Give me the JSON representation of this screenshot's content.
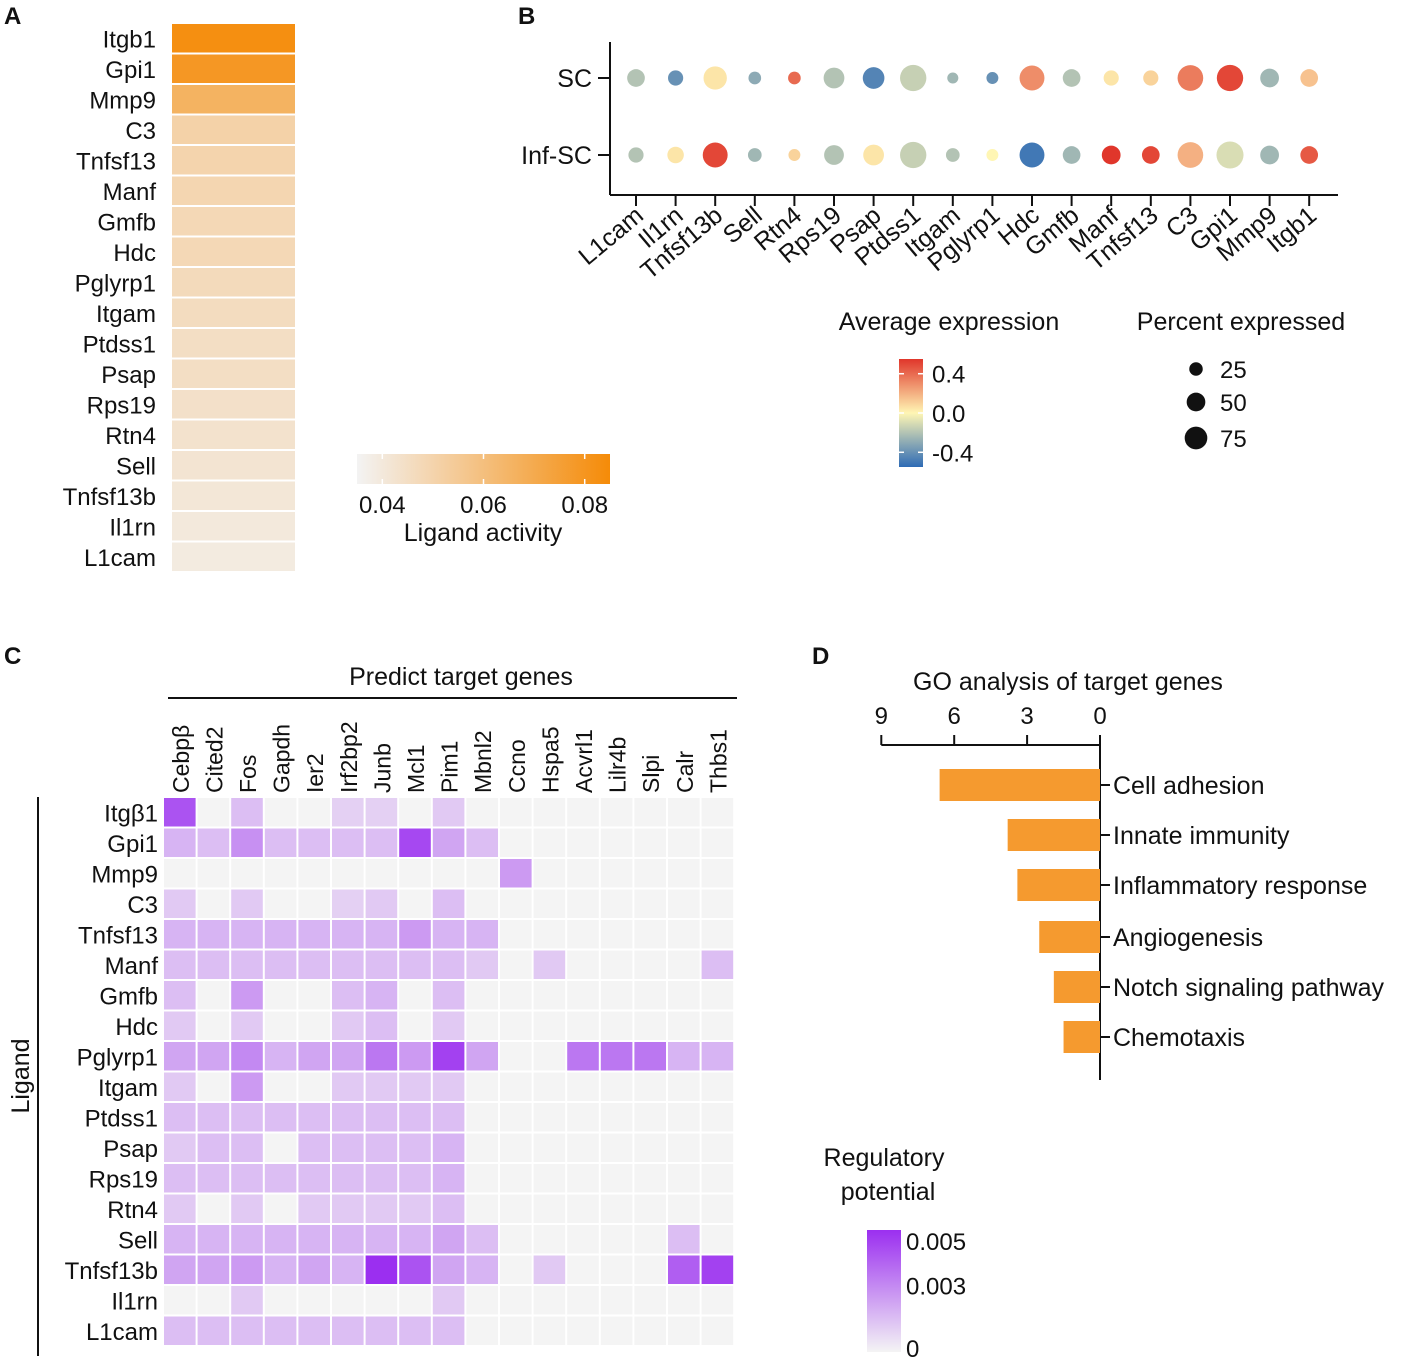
{
  "panel_labels": {
    "a": "A",
    "b": "B",
    "c": "C",
    "d": "D"
  },
  "colors": {
    "ligand_low": "#f3f3f3",
    "ligand_high": "#f58b08",
    "expr_low": "#2e6bb5",
    "expr_mid": "#fff6b4",
    "expr_high": "#e0362b",
    "reg_low": "#f4f4f4",
    "reg_high": "#9b2ff0",
    "bar": "#f59a2f",
    "axis": "#111111"
  },
  "chart_data": [
    {
      "panel": "A",
      "type": "heatmap",
      "title": "",
      "rows": [
        "Itgb1",
        "Gpi1",
        "Mmp9",
        "C3",
        "Tnfsf13",
        "Manf",
        "Gmfb",
        "Hdc",
        "Pglyrp1",
        "Itgam",
        "Ptdss1",
        "Psap",
        "Rps19",
        "Rtn4",
        "Sell",
        "Tnfsf13b",
        "Il1rn",
        "L1cam"
      ],
      "values": [
        0.083,
        0.079,
        0.066,
        0.051,
        0.05,
        0.049,
        0.048,
        0.048,
        0.047,
        0.046,
        0.045,
        0.045,
        0.044,
        0.043,
        0.042,
        0.041,
        0.04,
        0.039
      ],
      "colorbar": {
        "label": "Ligand activity",
        "range": [
          0.035,
          0.085
        ],
        "ticks": [
          0.04,
          0.06,
          0.08
        ],
        "tick_labels": [
          "0.04",
          "0.06",
          "0.08"
        ]
      }
    },
    {
      "panel": "B",
      "type": "scatter",
      "subtype": "dotplot",
      "groups": [
        "SC",
        "Inf-SC"
      ],
      "genes": [
        "L1cam",
        "Il1rn",
        "Tnfsf13b",
        "Sell",
        "Rtn4",
        "Rps19",
        "Psap",
        "Ptdss1",
        "Itgam",
        "Pglyrp1",
        "Hdc",
        "Gmfb",
        "Manf",
        "Tnfsf13",
        "C3",
        "Gpi1",
        "Mmp9",
        "Itgb1"
      ],
      "series": [
        {
          "name": "SC",
          "avg_expression": [
            -0.2,
            -0.4,
            0.05,
            -0.3,
            0.4,
            -0.2,
            -0.45,
            -0.15,
            -0.25,
            -0.4,
            0.3,
            -0.2,
            0.05,
            0.1,
            0.35,
            0.5,
            -0.25,
            0.15
          ],
          "pct_expressed": [
            30,
            20,
            60,
            12,
            12,
            45,
            50,
            80,
            8,
            10,
            70,
            30,
            20,
            20,
            75,
            80,
            35,
            30
          ]
        },
        {
          "name": "Inf-SC",
          "avg_expression": [
            -0.2,
            0.05,
            0.5,
            -0.25,
            0.1,
            -0.2,
            0.05,
            -0.15,
            -0.2,
            0.0,
            -0.5,
            -0.25,
            0.55,
            0.5,
            0.2,
            -0.1,
            -0.25,
            0.45
          ],
          "pct_expressed": [
            20,
            25,
            70,
            15,
            10,
            40,
            45,
            80,
            15,
            10,
            70,
            30,
            35,
            30,
            75,
            85,
            35,
            30
          ]
        }
      ],
      "color_legend": {
        "title": "Average expression",
        "range": [
          -0.55,
          0.55
        ],
        "ticks": [
          0.4,
          0.0,
          -0.4
        ],
        "tick_labels": [
          "0.4",
          "0.0",
          "-0.4"
        ]
      },
      "size_legend": {
        "title": "Percent expressed",
        "values": [
          25,
          50,
          75
        ],
        "labels": [
          "25",
          "50",
          "75"
        ]
      }
    },
    {
      "panel": "C",
      "type": "heatmap",
      "title": "Predict target genes",
      "ylabel": "Ligand",
      "columns": [
        "Cebpβ",
        "Cited2",
        "Fos",
        "Gapdh",
        "Ier2",
        "Irf2bp2",
        "Junb",
        "Mcl1",
        "Pim1",
        "Mbnl2",
        "Ccno",
        "Hspa5",
        "Acvrl1",
        "Lilr4b",
        "Slpi",
        "Calr",
        "Thbs1"
      ],
      "rows": [
        "Itgβ1",
        "Gpi1",
        "Mmp9",
        "C3",
        "Tnfsf13",
        "Manf",
        "Gmfb",
        "Hdc",
        "Pglyrp1",
        "Itgam",
        "Ptdss1",
        "Psap",
        "Rps19",
        "Rtn4",
        "Sell",
        "Tnfsf13b",
        "Il1rn",
        "L1cam"
      ],
      "values": [
        [
          0.0045,
          0,
          0.0015,
          0,
          0,
          0.001,
          0.001,
          0,
          0.0012,
          0,
          0,
          0,
          0,
          0,
          0,
          0,
          0
        ],
        [
          0.0018,
          0.0015,
          0.0028,
          0.0015,
          0.0015,
          0.0015,
          0.0015,
          0.0048,
          0.0022,
          0.0015,
          0,
          0,
          0,
          0,
          0,
          0,
          0
        ],
        [
          0,
          0,
          0,
          0,
          0,
          0,
          0,
          0,
          0,
          0,
          0.0025,
          0,
          0,
          0,
          0,
          0,
          0
        ],
        [
          0.0012,
          0,
          0.0012,
          0,
          0,
          0.001,
          0.0012,
          0,
          0.0015,
          0,
          0,
          0,
          0,
          0,
          0,
          0,
          0
        ],
        [
          0.0018,
          0.0018,
          0.0018,
          0.0018,
          0.0018,
          0.0018,
          0.0018,
          0.0025,
          0.0018,
          0.0018,
          0,
          0,
          0,
          0,
          0,
          0,
          0
        ],
        [
          0.0015,
          0.0015,
          0.0015,
          0.0015,
          0.0015,
          0.0015,
          0.0015,
          0.0015,
          0.0015,
          0.0012,
          0,
          0.0012,
          0,
          0,
          0,
          0,
          0.0015
        ],
        [
          0.0015,
          0,
          0.0025,
          0,
          0,
          0.0015,
          0.0018,
          0,
          0.0015,
          0,
          0,
          0,
          0,
          0,
          0,
          0,
          0
        ],
        [
          0.0012,
          0,
          0.0012,
          0,
          0,
          0.0012,
          0.0015,
          0,
          0.0012,
          0,
          0,
          0,
          0,
          0,
          0,
          0,
          0
        ],
        [
          0.0022,
          0.0022,
          0.003,
          0.0018,
          0.0022,
          0.0022,
          0.0035,
          0.0025,
          0.005,
          0.0022,
          0,
          0,
          0.0035,
          0.0035,
          0.0035,
          0.0018,
          0.0018
        ],
        [
          0.0012,
          0,
          0.0025,
          0,
          0,
          0.0012,
          0.0012,
          0.0012,
          0.0012,
          0,
          0,
          0,
          0,
          0,
          0,
          0,
          0
        ],
        [
          0.0015,
          0.0015,
          0.0015,
          0.0015,
          0.0015,
          0.0015,
          0.0015,
          0.0015,
          0.0015,
          0,
          0,
          0,
          0,
          0,
          0,
          0,
          0
        ],
        [
          0.0012,
          0.0015,
          0.0015,
          0,
          0.0015,
          0.0015,
          0.0015,
          0.0015,
          0.0018,
          0,
          0,
          0,
          0,
          0,
          0,
          0,
          0
        ],
        [
          0.0015,
          0.0015,
          0.0015,
          0.0015,
          0.0015,
          0.0015,
          0.0015,
          0.0015,
          0.0018,
          0,
          0,
          0,
          0,
          0,
          0,
          0,
          0
        ],
        [
          0.0012,
          0,
          0.0012,
          0,
          0.0012,
          0.0012,
          0.0012,
          0.0012,
          0.0015,
          0,
          0,
          0,
          0,
          0,
          0,
          0,
          0
        ],
        [
          0.0018,
          0.0018,
          0.0018,
          0.0018,
          0.0018,
          0.0018,
          0.0018,
          0.0018,
          0.0022,
          0.0015,
          0,
          0,
          0,
          0,
          0,
          0.0015,
          0
        ],
        [
          0.0022,
          0.0022,
          0.0025,
          0.0018,
          0.0022,
          0.0018,
          0.0055,
          0.0045,
          0.0022,
          0.0018,
          0,
          0.0012,
          0,
          0,
          0,
          0.0042,
          0.005
        ],
        [
          0,
          0,
          0.0012,
          0,
          0,
          0,
          0,
          0,
          0.0012,
          0,
          0,
          0,
          0,
          0,
          0,
          0,
          0
        ],
        [
          0.0015,
          0.0015,
          0.0015,
          0.0015,
          0.0015,
          0.0015,
          0.0015,
          0.0015,
          0.0015,
          0,
          0,
          0,
          0,
          0,
          0,
          0,
          0
        ]
      ],
      "colorbar": {
        "label_lines": [
          "Regulatory",
          "potential"
        ],
        "range": [
          0,
          0.0055
        ],
        "ticks": [
          0.005,
          0.003,
          0
        ],
        "tick_labels": [
          "0.005",
          "0.003",
          "0"
        ]
      }
    },
    {
      "panel": "D",
      "type": "bar",
      "orientation": "horizontal",
      "title": "GO analysis of target genes",
      "categories": [
        "Cell adhesion",
        "Innate immunity",
        "Inflammatory response",
        "Angiogenesis",
        "Notch signaling pathway",
        "Chemotaxis"
      ],
      "values": [
        6.6,
        3.8,
        3.4,
        2.5,
        1.9,
        1.5
      ],
      "xlim": [
        0,
        9
      ],
      "x_reversed": true,
      "ticks": [
        9,
        6,
        3,
        0
      ],
      "tick_labels": [
        "9",
        "6",
        "3",
        "0"
      ]
    }
  ]
}
